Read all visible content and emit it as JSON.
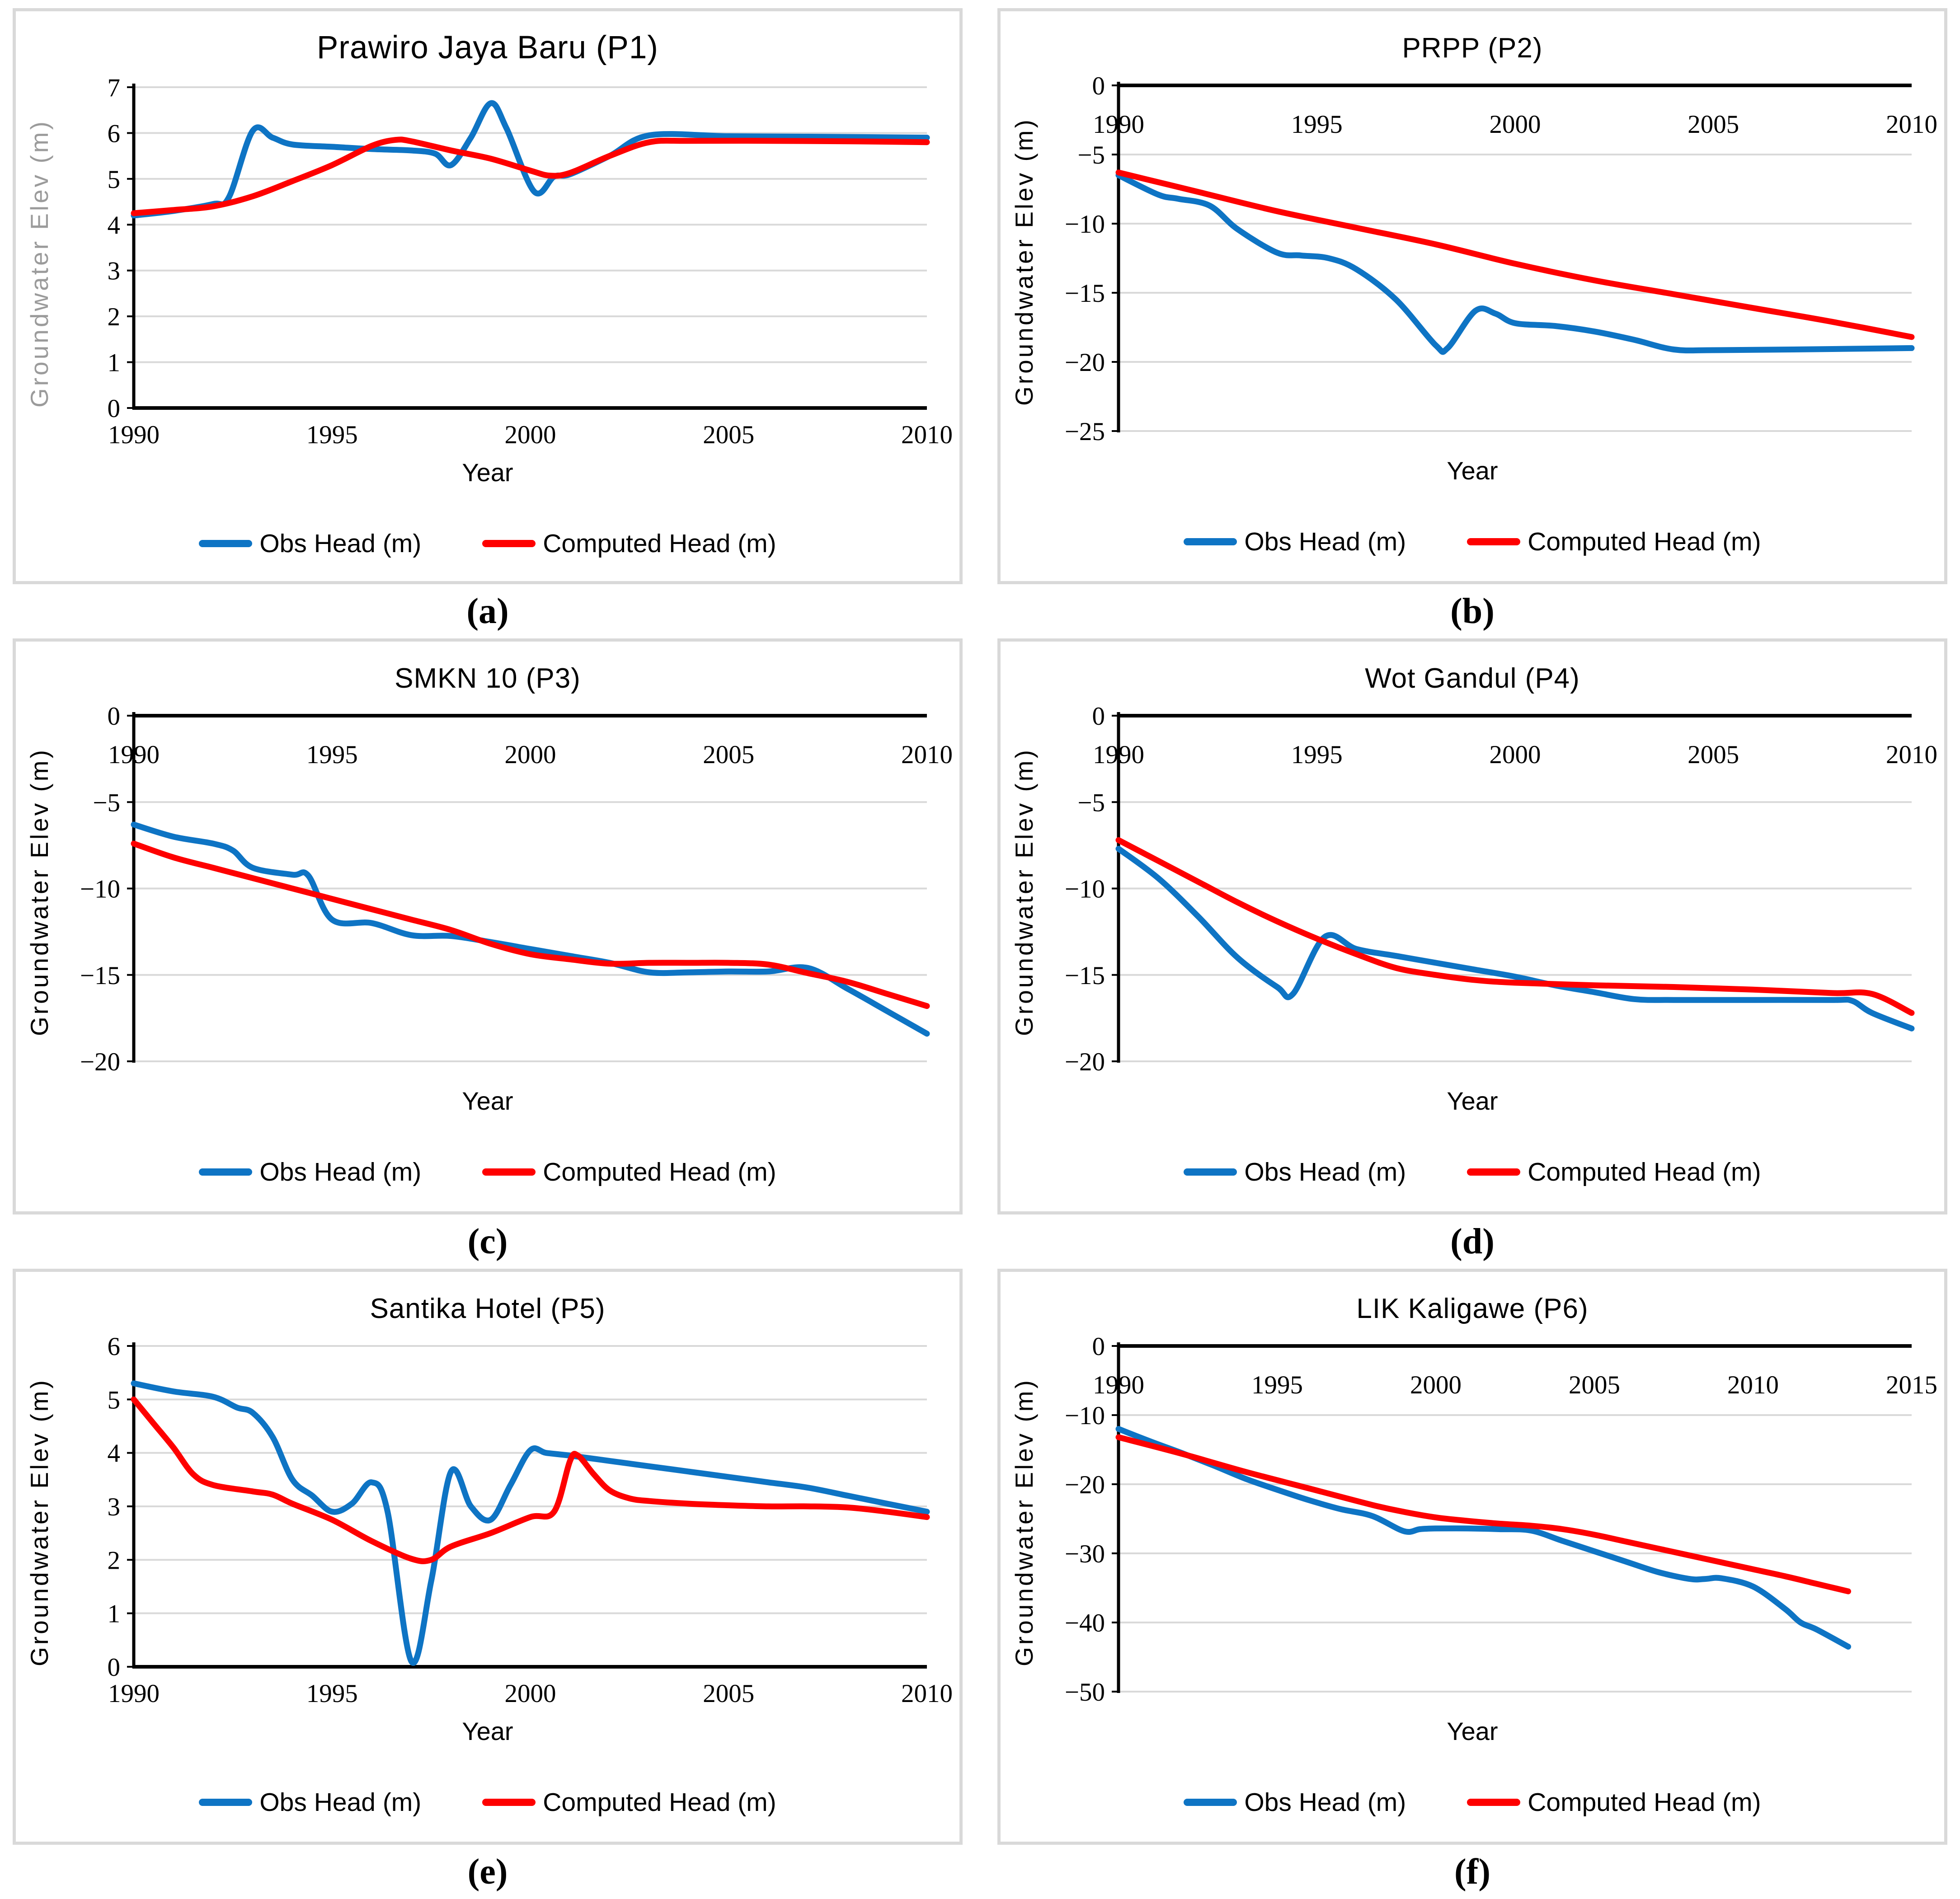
{
  "colors": {
    "obs_line": "#0e74c4",
    "computed_line": "#fe0000",
    "gridline": "#d9d9d9",
    "axis": "#000000",
    "panel_border": "#d9d9d9",
    "panel_a_ylabel": "#9b9b9b"
  },
  "chart_data": [
    {
      "type": "line",
      "panel_label": "(a)",
      "title": "Prawiro Jaya Baru (P1)",
      "xlabel": "Year",
      "ylabel": "Groundwater Elev (m)",
      "ylabel_color": "#9b9b9b",
      "axis_side": "bottom",
      "grid": true,
      "legend_position": "bottom",
      "xlim": [
        1990,
        2010
      ],
      "x_ticks": [
        1990,
        1995,
        2000,
        2005,
        2010
      ],
      "ylim": [
        0,
        7
      ],
      "y_ticks": [
        0,
        1,
        2,
        3,
        4,
        5,
        6,
        7
      ],
      "series": [
        {
          "name": "Obs Head (m)",
          "color": "#0e74c4",
          "x": [
            1990,
            1991,
            1992,
            1992.4,
            1993,
            1993.5,
            1994,
            1995,
            1996,
            1997,
            1997.6,
            1998,
            1998.5,
            1999,
            1999.4,
            2000.1,
            2000.6,
            2001,
            2002,
            2003,
            2005,
            2007,
            2010
          ],
          "y": [
            4.2,
            4.3,
            4.45,
            4.6,
            6.05,
            5.9,
            5.75,
            5.7,
            5.65,
            5.62,
            5.55,
            5.3,
            5.9,
            6.65,
            6.1,
            4.72,
            5.05,
            5.1,
            5.5,
            5.95,
            5.93,
            5.92,
            5.9
          ]
        },
        {
          "name": "Computed Head (m)",
          "color": "#fe0000",
          "x": [
            1990,
            1991,
            1992,
            1993,
            1994,
            1995,
            1996,
            1996.6,
            1997,
            1998,
            1999,
            2000,
            2000.5,
            2001,
            2002,
            2003,
            2004,
            2006,
            2008,
            2010
          ],
          "y": [
            4.25,
            4.32,
            4.4,
            4.62,
            4.95,
            5.3,
            5.72,
            5.85,
            5.82,
            5.62,
            5.44,
            5.18,
            5.07,
            5.13,
            5.5,
            5.8,
            5.83,
            5.83,
            5.82,
            5.8
          ]
        }
      ]
    },
    {
      "type": "line",
      "panel_label": "(b)",
      "title": "PRPP (P2)",
      "xlabel": "Year",
      "ylabel": "Groundwater Elev (m)",
      "ylabel_color": "#000000",
      "axis_side": "top",
      "grid": true,
      "legend_position": "bottom",
      "xlim": [
        1990,
        2010
      ],
      "x_ticks": [
        1990,
        1995,
        2000,
        2005,
        2010
      ],
      "ylim": [
        -25,
        0
      ],
      "y_ticks": [
        0,
        -5,
        -10,
        -15,
        -20,
        -25
      ],
      "series": [
        {
          "name": "Obs Head (m)",
          "color": "#0e74c4",
          "x": [
            1990,
            1991,
            1991.5,
            1992.3,
            1993,
            1994,
            1994.6,
            1995.3,
            1996,
            1997,
            1998,
            1998.3,
            1999,
            1999.5,
            2000,
            2001,
            2002,
            2003,
            2004,
            2005,
            2007,
            2010
          ],
          "y": [
            -6.5,
            -7.9,
            -8.2,
            -8.7,
            -10.4,
            -12.1,
            -12.3,
            -12.5,
            -13.3,
            -15.5,
            -18.8,
            -19.0,
            -16.3,
            -16.5,
            -17.2,
            -17.4,
            -17.8,
            -18.4,
            -19.1,
            -19.15,
            -19.1,
            -19.0
          ]
        },
        {
          "name": "Computed Head (m)",
          "color": "#fe0000",
          "x": [
            1990,
            1992,
            1994,
            1996,
            1998,
            2000,
            2002,
            2004,
            2006,
            2008,
            2010
          ],
          "y": [
            -6.3,
            -7.7,
            -9.1,
            -10.3,
            -11.5,
            -12.9,
            -14.1,
            -15.1,
            -16.1,
            -17.1,
            -18.2
          ]
        }
      ]
    },
    {
      "type": "line",
      "panel_label": "(c)",
      "title": "SMKN 10 (P3)",
      "xlabel": "Year",
      "ylabel": "Groundwater Elev (m)",
      "ylabel_color": "#000000",
      "axis_side": "top",
      "grid": true,
      "legend_position": "bottom",
      "xlim": [
        1990,
        2010
      ],
      "x_ticks": [
        1990,
        1995,
        2000,
        2005,
        2010
      ],
      "ylim": [
        -20,
        0
      ],
      "y_ticks": [
        0,
        -5,
        -10,
        -15,
        -20
      ],
      "series": [
        {
          "name": "Obs Head (m)",
          "color": "#0e74c4",
          "x": [
            1990,
            1991,
            1992,
            1992.5,
            1993,
            1994,
            1994.4,
            1995,
            1996,
            1997,
            1998,
            1999,
            2000,
            2001,
            2002,
            2003,
            2004,
            2005,
            2006,
            2007,
            2008,
            2009,
            2010
          ],
          "y": [
            -6.3,
            -7.0,
            -7.4,
            -7.8,
            -8.8,
            -9.2,
            -9.25,
            -11.8,
            -12.0,
            -12.7,
            -12.75,
            -13.1,
            -13.5,
            -13.9,
            -14.3,
            -14.85,
            -14.85,
            -14.8,
            -14.8,
            -14.6,
            -15.8,
            -17.1,
            -18.4
          ]
        },
        {
          "name": "Computed Head (m)",
          "color": "#fe0000",
          "x": [
            1990,
            1991,
            1992,
            1993,
            1994,
            1995,
            1996,
            1997,
            1998,
            1999,
            2000,
            2001,
            2002,
            2003,
            2004,
            2005,
            2006,
            2007,
            2008,
            2009,
            2010
          ],
          "y": [
            -7.4,
            -8.2,
            -8.8,
            -9.4,
            -10.0,
            -10.6,
            -11.2,
            -11.8,
            -12.4,
            -13.2,
            -13.8,
            -14.1,
            -14.35,
            -14.3,
            -14.3,
            -14.3,
            -14.4,
            -14.9,
            -15.4,
            -16.1,
            -16.8
          ]
        }
      ]
    },
    {
      "type": "line",
      "panel_label": "(d)",
      "title": "Wot Gandul (P4)",
      "xlabel": "Year",
      "ylabel": "Groundwater Elev (m)",
      "ylabel_color": "#000000",
      "axis_side": "top",
      "grid": true,
      "legend_position": "bottom",
      "xlim": [
        1990,
        2010
      ],
      "x_ticks": [
        1990,
        1995,
        2000,
        2005,
        2010
      ],
      "ylim": [
        -20,
        0
      ],
      "y_ticks": [
        0,
        -5,
        -10,
        -15,
        -20
      ],
      "series": [
        {
          "name": "Obs Head (m)",
          "color": "#0e74c4",
          "x": [
            1990,
            1991,
            1992,
            1993,
            1994,
            1994.4,
            1995.2,
            1996,
            1997,
            1998,
            1999,
            2000,
            2001,
            2002,
            2003,
            2004,
            2006,
            2008,
            2008.5,
            2009,
            2010
          ],
          "y": [
            -7.7,
            -9.4,
            -11.6,
            -14.0,
            -15.7,
            -16.1,
            -12.8,
            -13.5,
            -13.9,
            -14.3,
            -14.7,
            -15.1,
            -15.6,
            -16.0,
            -16.4,
            -16.45,
            -16.45,
            -16.45,
            -16.5,
            -17.2,
            -18.1
          ]
        },
        {
          "name": "Computed Head (m)",
          "color": "#fe0000",
          "x": [
            1990,
            1991,
            1992,
            1993,
            1994,
            1995,
            1996,
            1997,
            1998,
            1999,
            2000,
            2002,
            2004,
            2006,
            2008,
            2009,
            2010
          ],
          "y": [
            -7.2,
            -8.4,
            -9.6,
            -10.8,
            -11.9,
            -12.9,
            -13.8,
            -14.6,
            -15.0,
            -15.3,
            -15.45,
            -15.6,
            -15.7,
            -15.85,
            -16.05,
            -16.1,
            -17.2
          ]
        }
      ]
    },
    {
      "type": "line",
      "panel_label": "(e)",
      "title": "Santika Hotel (P5)",
      "xlabel": "Year",
      "ylabel": "Groundwater Elev (m)",
      "ylabel_color": "#000000",
      "axis_side": "bottom",
      "grid": true,
      "legend_position": "bottom",
      "xlim": [
        1990,
        2010
      ],
      "x_ticks": [
        1990,
        1995,
        2000,
        2005,
        2010
      ],
      "ylim": [
        0,
        6
      ],
      "y_ticks": [
        0,
        1,
        2,
        3,
        4,
        5,
        6
      ],
      "series": [
        {
          "name": "Obs Head (m)",
          "color": "#0e74c4",
          "x": [
            1990,
            1991,
            1992,
            1992.6,
            1993,
            1993.5,
            1994,
            1994.5,
            1995,
            1995.5,
            1996,
            1996.4,
            1997,
            1997.5,
            1998,
            1998.5,
            1999,
            1999.5,
            2000,
            2000.4,
            2001,
            2002,
            2003,
            2004,
            2005,
            2006,
            2007,
            2008,
            2009,
            2010
          ],
          "y": [
            5.3,
            5.15,
            5.05,
            4.85,
            4.75,
            4.3,
            3.5,
            3.2,
            2.9,
            3.05,
            3.45,
            2.9,
            0.1,
            1.6,
            3.65,
            3.0,
            2.75,
            3.4,
            4.05,
            4.0,
            3.95,
            3.85,
            3.75,
            3.65,
            3.55,
            3.45,
            3.35,
            3.2,
            3.05,
            2.9
          ]
        },
        {
          "name": "Computed Head (m)",
          "color": "#fe0000",
          "x": [
            1990,
            1990.5,
            1991,
            1991.5,
            1992,
            1993,
            1993.5,
            1994,
            1995,
            1996,
            1997,
            1997.5,
            1998,
            1999,
            2000,
            2000.6,
            2001,
            2001.2,
            2001.6,
            2002,
            2002.5,
            2003,
            2004,
            2005,
            2006,
            2007,
            2008,
            2009,
            2010
          ],
          "y": [
            5.0,
            4.55,
            4.1,
            3.6,
            3.4,
            3.28,
            3.22,
            3.05,
            2.75,
            2.35,
            2.02,
            2.0,
            2.25,
            2.5,
            2.8,
            2.9,
            3.85,
            3.95,
            3.6,
            3.3,
            3.15,
            3.1,
            3.05,
            3.02,
            3.0,
            3.0,
            2.98,
            2.9,
            2.8
          ]
        }
      ]
    },
    {
      "type": "line",
      "panel_label": "(f)",
      "title": "LIK Kaligawe (P6)",
      "xlabel": "Year",
      "ylabel": "Groundwater Elev (m)",
      "ylabel_color": "#000000",
      "axis_side": "top",
      "grid": true,
      "legend_position": "bottom",
      "xlim": [
        1990,
        2015
      ],
      "x_ticks": [
        1990,
        1995,
        2000,
        2005,
        2010,
        2015
      ],
      "ylim": [
        -50,
        0
      ],
      "y_ticks": [
        0,
        -10,
        -20,
        -30,
        -40,
        -50
      ],
      "series": [
        {
          "name": "Obs Head (m)",
          "color": "#0e74c4",
          "x": [
            1990,
            1991,
            1992,
            1993,
            1994,
            1995,
            1996,
            1997,
            1998,
            1999,
            1999.5,
            2000,
            2001,
            2002,
            2003,
            2004,
            2005,
            2006,
            2007,
            2008,
            2008.5,
            2009,
            2010,
            2011,
            2011.5,
            2012,
            2013
          ],
          "y": [
            -12,
            -13.8,
            -15.5,
            -17.3,
            -19.2,
            -20.8,
            -22.3,
            -23.6,
            -24.6,
            -26.8,
            -26.5,
            -26.4,
            -26.4,
            -26.5,
            -26.7,
            -28.2,
            -29.7,
            -31.2,
            -32.7,
            -33.7,
            -33.7,
            -33.6,
            -34.8,
            -38.0,
            -40.0,
            -41.0,
            -43.5
          ]
        },
        {
          "name": "Computed Head (m)",
          "color": "#fe0000",
          "x": [
            1990,
            1992,
            1994,
            1996,
            1998,
            1999,
            2000,
            2001,
            2002,
            2003,
            2004,
            2005,
            2006,
            2007,
            2008,
            2009,
            2010,
            2011,
            2012,
            2013
          ],
          "y": [
            -13.2,
            -15.6,
            -18.2,
            -20.6,
            -23.0,
            -24.0,
            -24.8,
            -25.3,
            -25.7,
            -26.0,
            -26.5,
            -27.3,
            -28.3,
            -29.3,
            -30.3,
            -31.3,
            -32.3,
            -33.3,
            -34.4,
            -35.5
          ]
        }
      ]
    }
  ]
}
